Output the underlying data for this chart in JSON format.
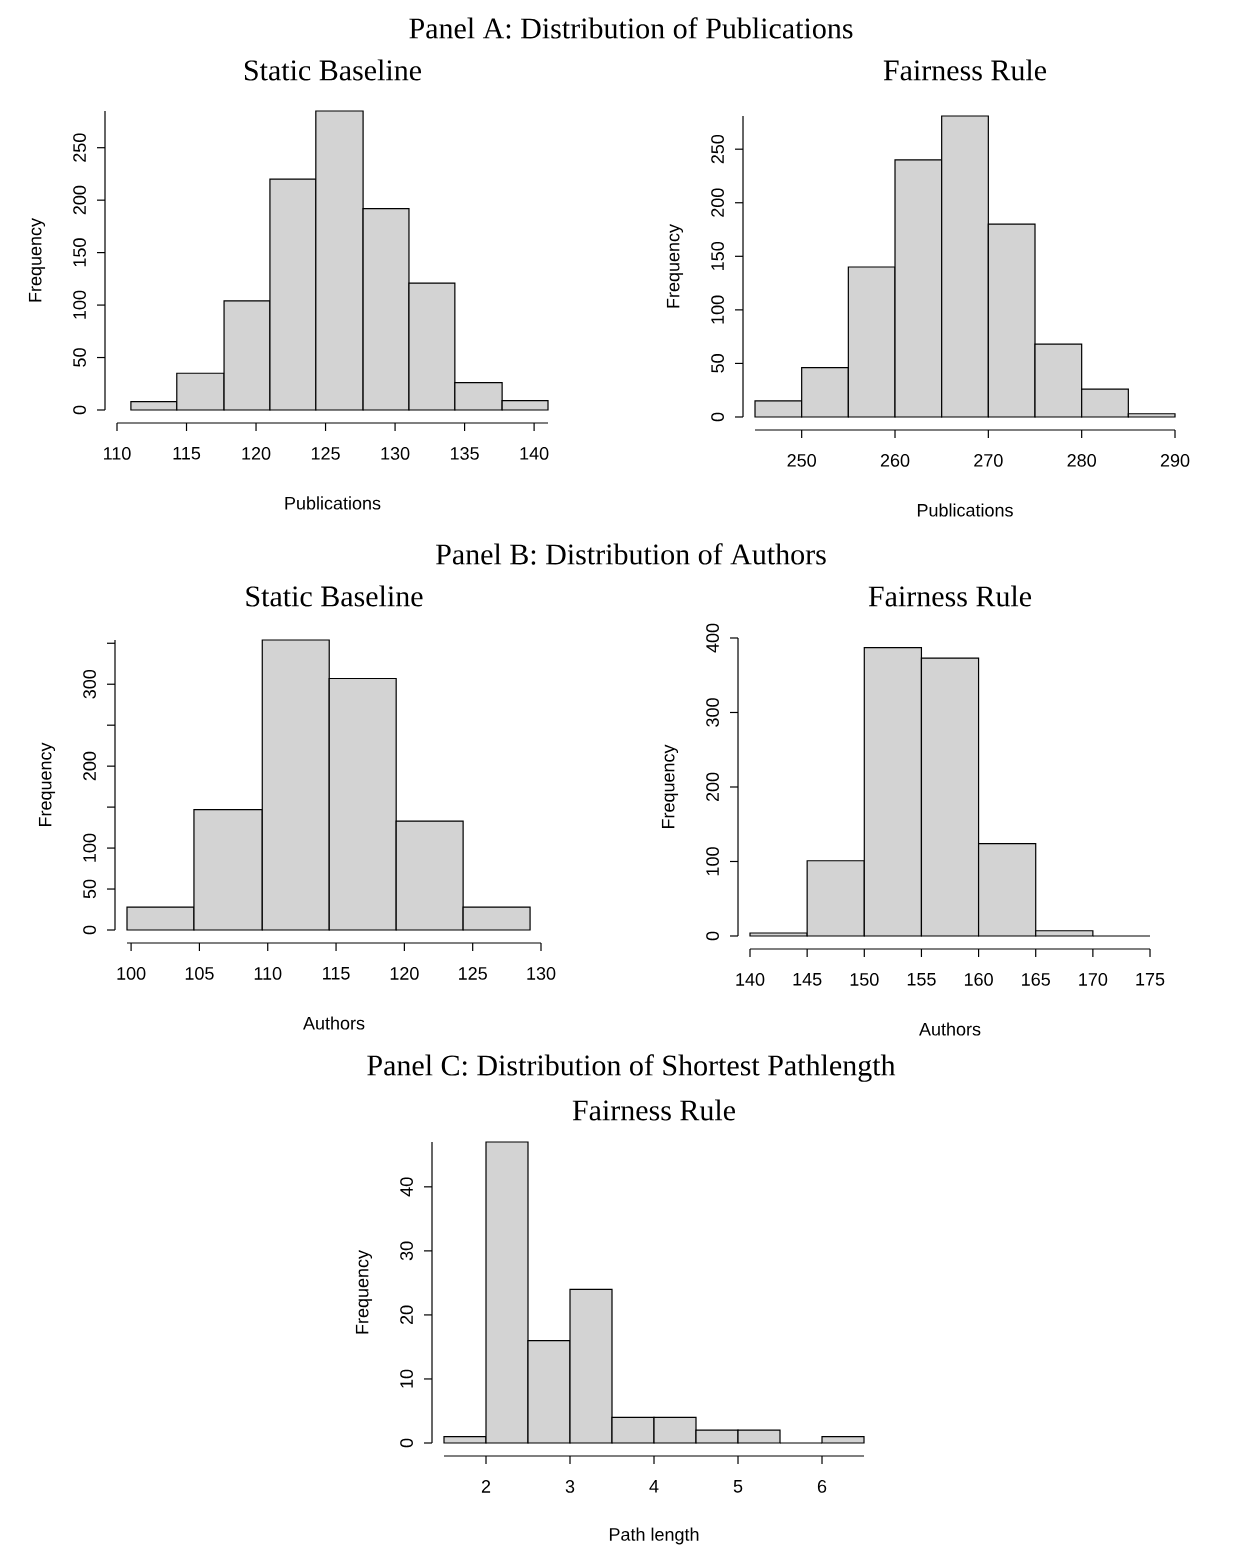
{
  "chart_data": [
    {
      "type": "histogram",
      "title": "Static Baseline",
      "xlabel": "Publications",
      "ylabel": "Frequency",
      "annotations": [
        "Panel A: Distribution of Publications"
      ],
      "color": "#d3d3d3",
      "bins": [
        111,
        114.3,
        117.7,
        121,
        124.3,
        127.7,
        131,
        134.3,
        137.7,
        141
      ],
      "values": [
        8,
        35,
        104,
        220,
        285,
        192,
        121,
        26,
        9
      ],
      "xlim": [
        110,
        141
      ],
      "ylim": [
        0,
        285
      ],
      "xticks": [
        110,
        115,
        120,
        125,
        130,
        135,
        140
      ],
      "yticks": [
        0,
        50,
        100,
        150,
        200,
        250
      ]
    },
    {
      "type": "histogram",
      "title": "Fairness Rule",
      "xlabel": "Publications",
      "ylabel": "Frequency",
      "color": "#d3d3d3",
      "bins": [
        245,
        250,
        255,
        260,
        265,
        270,
        275,
        280,
        285,
        290
      ],
      "values": [
        15,
        46,
        140,
        240,
        281,
        180,
        68,
        26,
        3
      ],
      "xlim": [
        245,
        290
      ],
      "ylim": [
        0,
        281
      ],
      "xticks": [
        250,
        260,
        270,
        280,
        290
      ],
      "yticks": [
        0,
        50,
        100,
        150,
        200,
        250
      ]
    },
    {
      "type": "histogram",
      "title": "Static Baseline",
      "xlabel": "Authors",
      "ylabel": "Frequency",
      "annotations": [
        "Panel B: Distribution of Authors"
      ],
      "color": "#d3d3d3",
      "bins": [
        99.7,
        104.6,
        109.6,
        114.5,
        119.4,
        124.3,
        129.2
      ],
      "values": [
        28,
        147,
        354,
        307,
        133,
        28
      ],
      "xlim": [
        99.7,
        130
      ],
      "ylim": [
        0,
        354
      ],
      "xticks": [
        100,
        105,
        110,
        115,
        120,
        125,
        130
      ],
      "yticks": [
        0,
        50,
        100,
        {
          "value": 150,
          "label": null
        },
        200,
        {
          "value": 250,
          "label": null
        },
        300,
        {
          "value": 350,
          "label": null
        }
      ]
    },
    {
      "type": "histogram",
      "title": "Fairness Rule",
      "xlabel": "Authors",
      "ylabel": "Frequency",
      "color": "#d3d3d3",
      "bins": [
        140,
        145,
        150,
        155,
        160,
        165,
        170,
        175
      ],
      "values": [
        4,
        101,
        387,
        373,
        124,
        7,
        0
      ],
      "xlim": [
        140,
        175
      ],
      "ylim": [
        0,
        400
      ],
      "xticks": [
        140,
        145,
        150,
        155,
        160,
        165,
        170,
        175
      ],
      "yticks": [
        0,
        100,
        200,
        300,
        400
      ]
    },
    {
      "type": "histogram",
      "title": "Fairness Rule",
      "xlabel": "Path length",
      "ylabel": "Frequency",
      "annotations": [
        "Panel C: Distribution of Shortest Pathlength"
      ],
      "color": "#d3d3d3",
      "bins": [
        1.5,
        2,
        2.5,
        3,
        3.5,
        4,
        4.5,
        5,
        5.5,
        6,
        6.5
      ],
      "values": [
        1,
        47,
        16,
        24,
        4,
        4,
        2,
        2,
        0,
        1
      ],
      "xlim": [
        1.5,
        6.5
      ],
      "ylim": [
        0,
        47
      ],
      "xticks": [
        2,
        3,
        4,
        5,
        6
      ],
      "yticks": [
        0,
        10,
        20,
        30,
        40
      ]
    }
  ]
}
